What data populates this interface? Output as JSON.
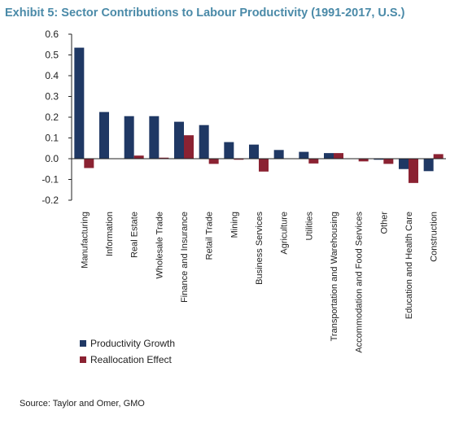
{
  "title": "Exhibit 5: Sector Contributions to Labour Productivity (1991-2017, U.S.)",
  "source": "Source: Taylor and Omer, GMO",
  "chart_data": {
    "type": "bar",
    "title": "Exhibit 5: Sector Contributions to Labour Productivity (1991-2017, U.S.)",
    "xlabel": "",
    "ylabel": "",
    "ylim": [
      -0.2,
      0.6
    ],
    "yticks": [
      "0.6",
      "0.5",
      "0.4",
      "0.3",
      "0.2",
      "0.1",
      "0.0",
      "-0.1",
      "-0.2"
    ],
    "grid": false,
    "legend_position": "bottom-left",
    "categories": [
      "Manufacturing",
      "Information",
      "Real Estate",
      "Wholesale Trade",
      "Finance and Insurance",
      "Retail Trade",
      "Mining",
      "Business Services",
      "Agriculture",
      "Utilities",
      "Transportation and Warehousing",
      "Accommodation and Food Services",
      "Other",
      "Education and Health Care",
      "Construction"
    ],
    "series": [
      {
        "name": "Productivity Growth",
        "color": "#1f3864",
        "values": [
          0.535,
          0.225,
          0.205,
          0.205,
          0.178,
          0.162,
          0.08,
          0.068,
          0.042,
          0.033,
          0.027,
          0.0,
          -0.005,
          -0.05,
          -0.06
        ]
      },
      {
        "name": "Reallocation Effect",
        "color": "#8b2232",
        "values": [
          -0.045,
          0.0,
          0.015,
          0.005,
          0.113,
          -0.025,
          -0.005,
          -0.062,
          0.0,
          -0.023,
          0.027,
          -0.013,
          -0.025,
          -0.117,
          0.022
        ]
      }
    ]
  }
}
